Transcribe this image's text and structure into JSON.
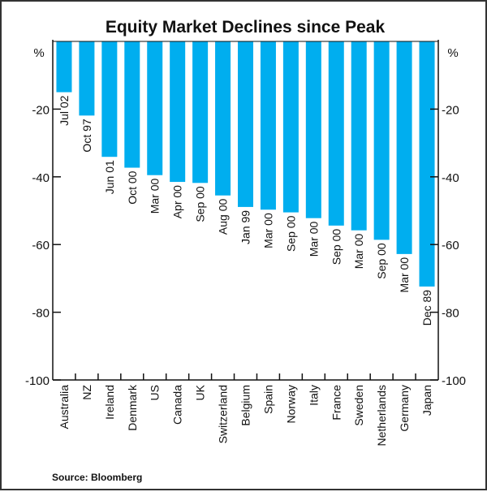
{
  "chart_data": {
    "type": "bar",
    "title": "Equity Market Declines since Peak",
    "ylabel_left": "%",
    "ylabel_right": "%",
    "ylim": [
      -100,
      0
    ],
    "yticks": [
      -20,
      -40,
      -60,
      -80,
      -100
    ],
    "grid": false,
    "bar_color": "#00AEEF",
    "categories": [
      "Australia",
      "NZ",
      "Ireland",
      "Denmark",
      "US",
      "Canada",
      "UK",
      "Switzerland",
      "Belgium",
      "Spain",
      "Norway",
      "Italy",
      "France",
      "Sweden",
      "Netherlands",
      "Germany",
      "Japan"
    ],
    "peak_dates": [
      "Jul 02",
      "Oct 97",
      "Jun 01",
      "Oct 00",
      "Mar 00",
      "Apr 00",
      "Sep 00",
      "Aug 00",
      "Jan 99",
      "Mar 00",
      "Sep 00",
      "Mar 00",
      "Sep 00",
      "Mar 00",
      "Sep 00",
      "Mar 00",
      "Dec 89"
    ],
    "values": [
      -15.0,
      -21.9,
      -34.1,
      -37.3,
      -39.5,
      -41.5,
      -41.8,
      -45.5,
      -48.9,
      -49.7,
      -50.5,
      -52.2,
      -54.4,
      -55.8,
      -58.6,
      -62.8,
      -72.4
    ],
    "source": "Source: Bloomberg"
  }
}
